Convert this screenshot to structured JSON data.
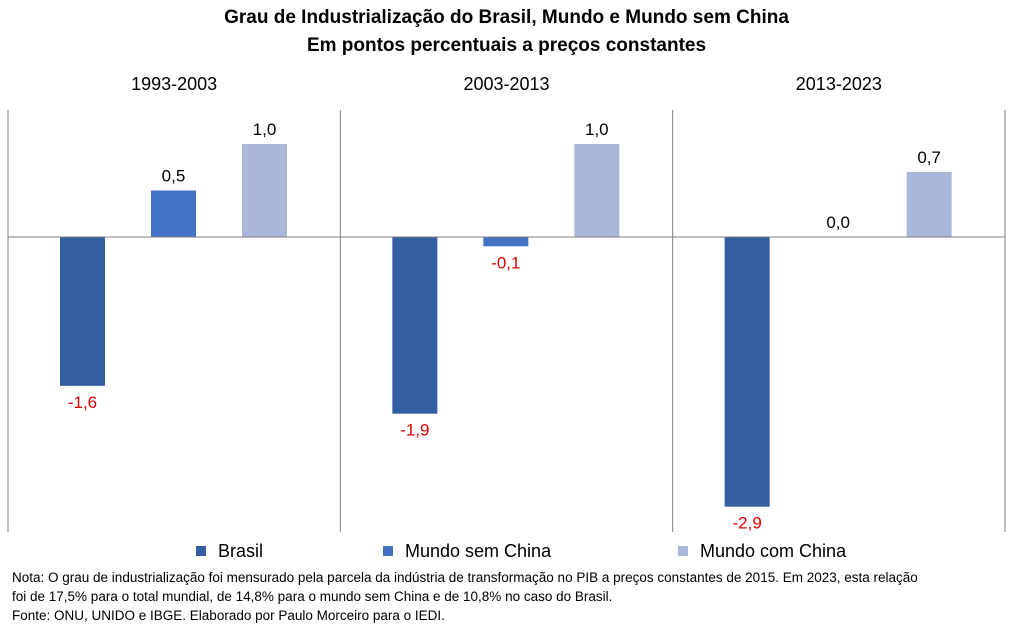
{
  "title": "Grau de Industrialização do Brasil, Mundo e Mundo sem China",
  "subtitle": "Em pontos percentuais a preços constantes",
  "colors": {
    "brasil": "#345ea2",
    "mundo_sem_china": "#4472c4",
    "mundo_com_china": "#a9b7db",
    "negative_label": "#e00000",
    "positive_label": "#000000",
    "axis": "#7f7f7f"
  },
  "legend": [
    {
      "name": "Brasil",
      "color": "#345ea2"
    },
    {
      "name": "Mundo sem China",
      "color": "#4472c4"
    },
    {
      "name": "Mundo com China",
      "color": "#a9b7db"
    }
  ],
  "chart_data": {
    "type": "bar",
    "panels": [
      "1993-2003",
      "2003-2013",
      "2013-2023"
    ],
    "series": [
      {
        "name": "Brasil",
        "values": [
          -1.6,
          -1.9,
          -2.9
        ],
        "labels": [
          "-1,6",
          "-1,9",
          "-2,9"
        ]
      },
      {
        "name": "Mundo sem China",
        "values": [
          0.5,
          -0.1,
          0.0
        ],
        "labels": [
          "0,5",
          "-0,1",
          "0,0"
        ]
      },
      {
        "name": "Mundo com China",
        "values": [
          1.0,
          1.0,
          0.7
        ],
        "labels": [
          "1,0",
          "1,0",
          "0,7"
        ]
      }
    ],
    "ylim": [
      -3.1,
      1.35
    ],
    "legend_position": "bottom"
  },
  "notes": {
    "line1": "Nota: O grau de industrialização foi mensurado pela parcela da indústria de transformação  no PIB a preços constantes de 2015. Em 2023, esta relação",
    "line2": "foi de 17,5% para o total mundial,  de 14,8% para o mundo  sem China e de 10,8% no caso do  Brasil.",
    "line3": "Fonte: ONU, UNIDO e IBGE. Elaborado por  Paulo Morceiro para o IEDI."
  }
}
